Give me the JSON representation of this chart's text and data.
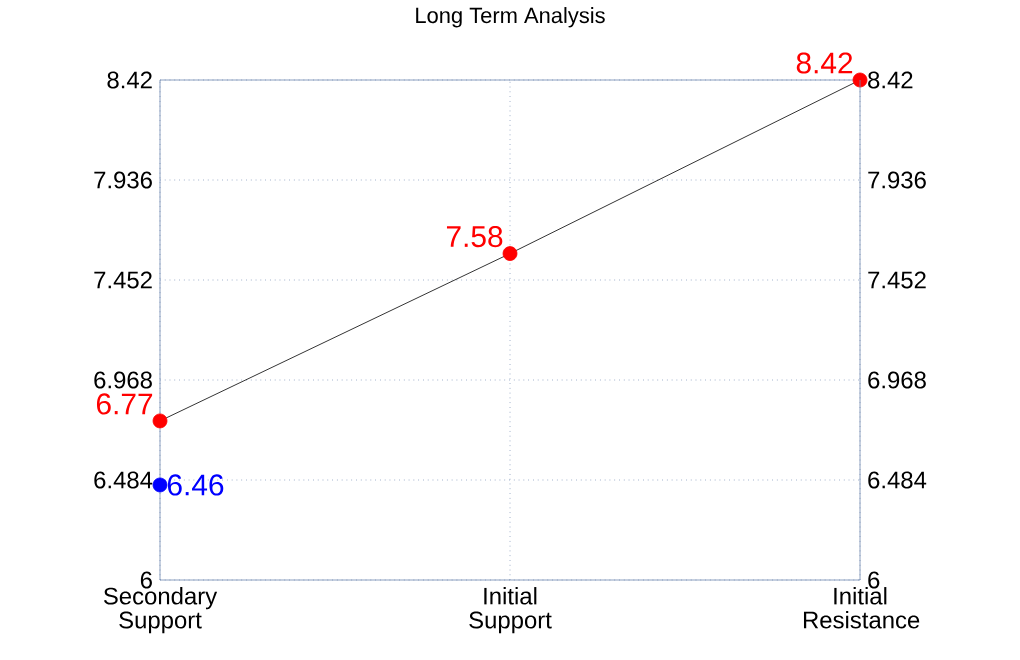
{
  "chart_data": {
    "type": "line",
    "title": "Long Term Analysis",
    "categories": [
      "Secondary Support",
      "Initial Support",
      "Initial Resistance"
    ],
    "ylim": [
      6,
      8.42
    ],
    "yticks": [
      6,
      6.484,
      6.968,
      7.452,
      7.936,
      8.42
    ],
    "y2lim": [
      6,
      8.42
    ],
    "y2ticks": [
      6,
      6.484,
      6.968,
      7.452,
      7.936,
      8.42
    ],
    "grid": true,
    "series": [
      {
        "color": "#000000",
        "marker": "none",
        "values": [
          6.77,
          7.58,
          8.42
        ]
      },
      {
        "type": "scatter",
        "marker": "circle",
        "color": "#ff0000",
        "values": [
          6.77,
          7.58,
          8.42
        ],
        "value_labels": [
          "6.77",
          "7.58",
          "8.42"
        ]
      },
      {
        "type": "scatter",
        "marker": "circle",
        "color": "#0000ff",
        "values": [
          6.46,
          null,
          null
        ],
        "value_labels": [
          "6.46",
          null,
          null
        ]
      }
    ]
  }
}
